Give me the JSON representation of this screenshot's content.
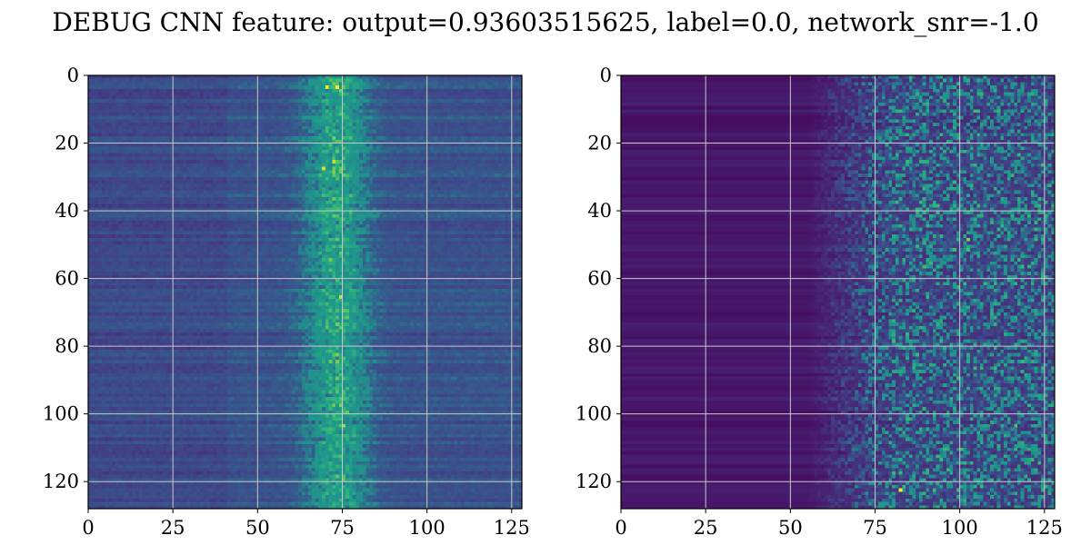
{
  "figure": {
    "title": "DEBUG CNN feature: output=0.93603515625, label=0.0, network_snr=-1.0"
  },
  "chart_data": [
    {
      "type": "heatmap",
      "name": "left-panel",
      "xlim": [
        0,
        128
      ],
      "ylim": [
        0,
        128
      ],
      "xticks": [
        0,
        25,
        50,
        75,
        100,
        125
      ],
      "yticks": [
        0,
        20,
        40,
        60,
        80,
        100,
        120
      ],
      "grid": true,
      "colormap": "viridis",
      "description": "Left panel: mid-blue background with a bright vertical band centered near x≈72-75 and sparse yellow spots",
      "rows": 128,
      "cols": 128,
      "background_level": 0.28,
      "band_center": 73,
      "band_width": 9,
      "band_strength": 0.35,
      "noise_level": 0.08,
      "hotspots": [
        {
          "x": 70,
          "y": 3,
          "v": 1.0
        },
        {
          "x": 73,
          "y": 3,
          "v": 1.0
        },
        {
          "x": 74,
          "y": 4,
          "v": 0.85
        },
        {
          "x": 72,
          "y": 25,
          "v": 0.95
        },
        {
          "x": 69,
          "y": 27,
          "v": 0.95
        },
        {
          "x": 74,
          "y": 65,
          "v": 0.95
        },
        {
          "x": 75,
          "y": 103,
          "v": 0.9
        },
        {
          "x": 68,
          "y": 52,
          "v": 0.75
        }
      ]
    },
    {
      "type": "heatmap",
      "name": "right-panel",
      "xlim": [
        0,
        128
      ],
      "ylim": [
        0,
        128
      ],
      "xticks": [
        0,
        25,
        50,
        75,
        100,
        125
      ],
      "yticks": [
        0,
        20,
        40,
        60,
        80,
        100,
        120
      ],
      "grid": true,
      "colormap": "viridis",
      "description": "Right panel: dark purple on the left, increasingly noisy with teal/green spots toward the right (x>70)",
      "rows": 128,
      "cols": 128,
      "background_level": 0.08,
      "ramp_start": 55,
      "ramp_end": 80,
      "noise_level": 0.35,
      "hotspots": [
        {
          "x": 82,
          "y": 122,
          "v": 1.0
        },
        {
          "x": 102,
          "y": 48,
          "v": 0.85
        },
        {
          "x": 116,
          "y": 103,
          "v": 0.8
        },
        {
          "x": 118,
          "y": 87,
          "v": 0.7
        },
        {
          "x": 82,
          "y": 36,
          "v": 0.7
        }
      ]
    }
  ]
}
